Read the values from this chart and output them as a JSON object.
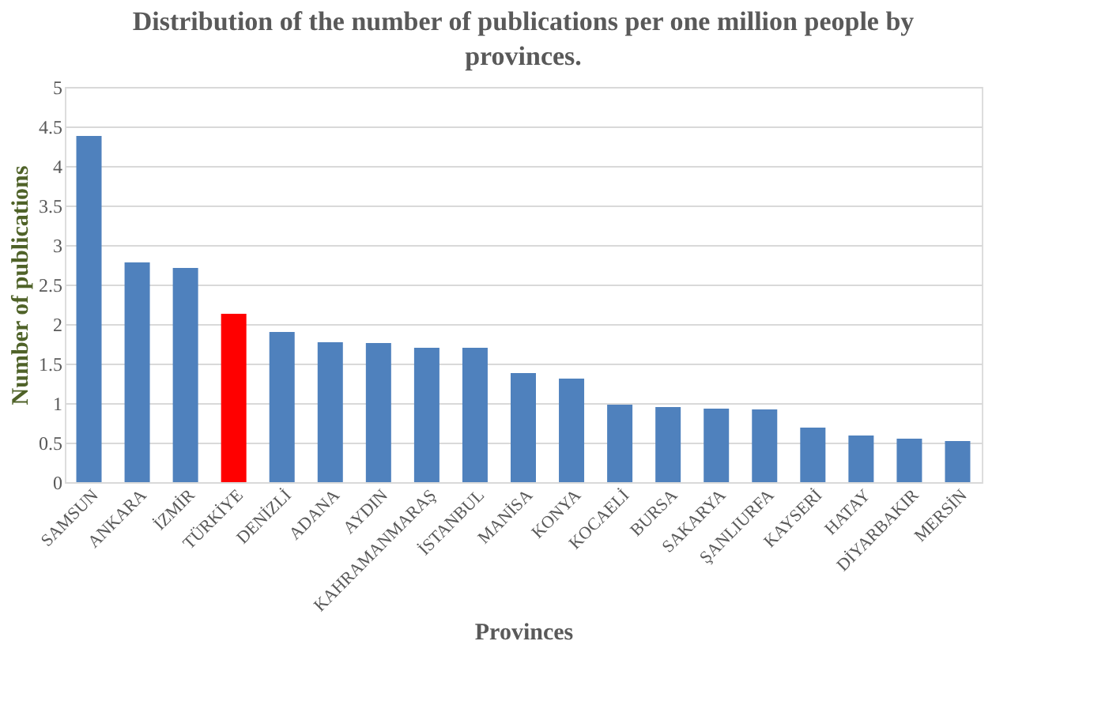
{
  "chart_data": {
    "type": "bar",
    "title": "Distribution of the number of publications per one million people by provinces.",
    "xlabel": "Provinces",
    "ylabel": "Number of publications",
    "categories": [
      "SAMSUN",
      "ANKARA",
      "İZMİR",
      "TÜRKİYE",
      "DENİZLİ",
      "ADANA",
      "AYDIN",
      "KAHRAMANMARAŞ",
      "İSTANBUL",
      "MANİSA",
      "KONYA",
      "KOCAELİ",
      "BURSA",
      "SAKARYA",
      "ŞANLIURFA",
      "KAYSERİ",
      "HATAY",
      "DİYARBAKIR",
      "MERSİN"
    ],
    "values": [
      4.38,
      2.78,
      2.71,
      2.13,
      1.9,
      1.77,
      1.76,
      1.7,
      1.7,
      1.38,
      1.31,
      0.98,
      0.95,
      0.93,
      0.92,
      0.69,
      0.59,
      0.55,
      0.52
    ],
    "colors": [
      "#4f81bd",
      "#4f81bd",
      "#4f81bd",
      "#ff0000",
      "#4f81bd",
      "#4f81bd",
      "#4f81bd",
      "#4f81bd",
      "#4f81bd",
      "#4f81bd",
      "#4f81bd",
      "#4f81bd",
      "#4f81bd",
      "#4f81bd",
      "#4f81bd",
      "#4f81bd",
      "#4f81bd",
      "#4f81bd",
      "#4f81bd"
    ],
    "ylim": [
      0,
      5
    ],
    "yticks": [
      0,
      0.5,
      1,
      1.5,
      2,
      2.5,
      3,
      3.5,
      4,
      4.5,
      5
    ],
    "grid": "y"
  }
}
